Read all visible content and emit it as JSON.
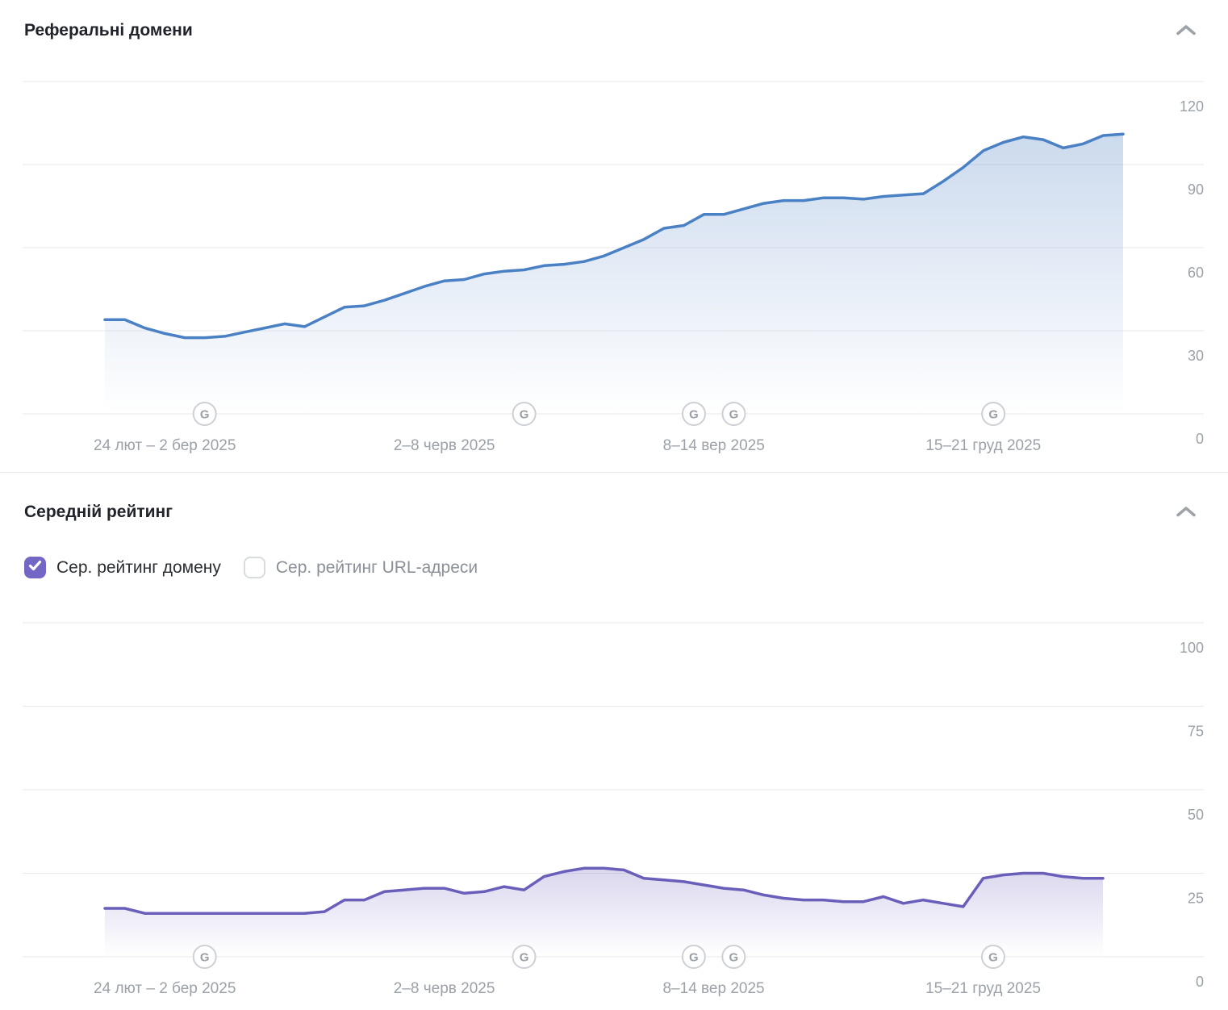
{
  "section_referring_domains": {
    "title": "Реферальні домени",
    "collapse_icon": "chevron-up"
  },
  "section_avg_rating": {
    "title": "Середній рейтинг",
    "collapse_icon": "chevron-up",
    "legend": [
      {
        "label": "Сер. рейтинг домену",
        "checked": true,
        "accent_color": "#7267c5"
      },
      {
        "label": "Сер. рейтинг URL-адреси",
        "checked": false
      }
    ]
  },
  "colors": {
    "referring_domains_line": "#4a80c4",
    "avg_rating_line": "#6a5ebb",
    "axis_text": "#9ba1a8",
    "gridline": "#e9eaec",
    "google_marker_letter": "#9aa0a6"
  },
  "chart_data": [
    {
      "type": "area",
      "title": "Реферальні домени",
      "ylim": [
        0,
        120
      ],
      "y_ticks": [
        0,
        30,
        60,
        90,
        120
      ],
      "grid": true,
      "legend_position": "none",
      "x_tick_labels": [
        {
          "label": "24 лют – 2 бер 2025",
          "index": 3
        },
        {
          "label": "2–8 черв 2025",
          "index": 17
        },
        {
          "label": "8–14 вер 2025",
          "index": 30.5
        },
        {
          "label": "15–21 груд 2025",
          "index": 44
        }
      ],
      "google_update_markers": [
        5,
        21,
        29.5,
        31.5,
        44.5
      ],
      "series": [
        {
          "name": "Реферальні домени",
          "color": "#4a80c4",
          "values": [
            34,
            34,
            31,
            29,
            27.5,
            27.5,
            28,
            29.5,
            31,
            32.5,
            31.5,
            35,
            38.5,
            39,
            41,
            43.5,
            46,
            48,
            48.5,
            50.5,
            51.5,
            52,
            53.5,
            54,
            55,
            57,
            60,
            63,
            67,
            68,
            72,
            72,
            74,
            76,
            77,
            77,
            78,
            78,
            77.5,
            78.5,
            79,
            79.5,
            84,
            89,
            95,
            98,
            100,
            99,
            96,
            97.5,
            100.5,
            101
          ]
        }
      ]
    },
    {
      "type": "area",
      "title": "Середній рейтинг",
      "ylim": [
        0,
        100
      ],
      "y_ticks": [
        0,
        25,
        50,
        75,
        100
      ],
      "grid": true,
      "legend_position": "top-left",
      "x_tick_labels": [
        {
          "label": "24 лют – 2 бер 2025",
          "index": 3
        },
        {
          "label": "2–8 черв 2025",
          "index": 17
        },
        {
          "label": "8–14 вер 2025",
          "index": 30.5
        },
        {
          "label": "15–21 груд 2025",
          "index": 44
        }
      ],
      "google_update_markers": [
        5,
        21,
        29.5,
        31.5,
        44.5
      ],
      "series": [
        {
          "name": "Сер. рейтинг домену",
          "color": "#6a5ebb",
          "values": [
            14.5,
            14.5,
            13,
            13,
            13,
            13,
            13,
            13,
            13,
            13,
            13,
            13.5,
            17,
            17,
            19.5,
            20,
            20.5,
            20.5,
            19,
            19.5,
            21,
            20,
            24,
            25.5,
            26.5,
            26.5,
            26,
            23.5,
            23,
            22.5,
            21.5,
            20.5,
            20,
            18.5,
            17.5,
            17,
            17,
            16.5,
            16.5,
            18,
            16,
            17,
            16,
            15,
            23.5,
            24.5,
            25,
            25,
            24,
            23.5,
            23.5
          ]
        }
      ]
    }
  ]
}
